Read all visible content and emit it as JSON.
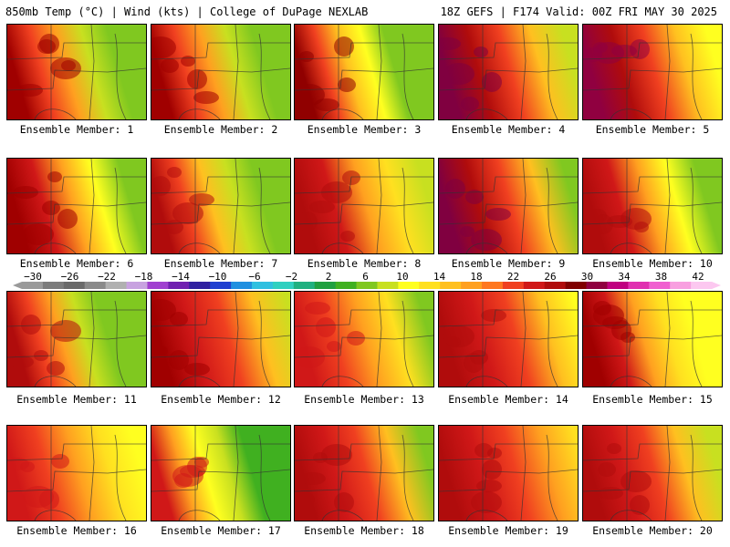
{
  "header": {
    "left_title": "850mb Temp (°C) | Wind (kts) | College of DuPage NEXLAB",
    "right_title": "18Z GEFS | F174 Valid: 00Z FRI MAY 30 2025"
  },
  "colorbar": {
    "labels": [
      "−30",
      "−26",
      "−22",
      "−18",
      "−14",
      "−10",
      "−6",
      "−2",
      "2",
      "6",
      "10",
      "14",
      "18",
      "22",
      "26",
      "30",
      "34",
      "38",
      "42"
    ],
    "colors": [
      "#9a9a9a",
      "#7c7c7c",
      "#6a6a6a",
      "#8a8a8a",
      "#b0b0b0",
      "#c8a2e0",
      "#a040d0",
      "#7020b0",
      "#3020a0",
      "#2040d0",
      "#2090e0",
      "#30c0e0",
      "#30d0c0",
      "#20b080",
      "#20a040",
      "#40b020",
      "#80c820",
      "#c8e020",
      "#ffff20",
      "#ffe020",
      "#ffc020",
      "#ffa020",
      "#ff7820",
      "#f04020",
      "#d01818",
      "#b00c0c",
      "#800000",
      "#900040",
      "#c00080",
      "#e030b0",
      "#f060d0",
      "#f8a0e0",
      "#fcc8f0"
    ]
  },
  "panels": [
    {
      "label": "Ensemble Member: 1",
      "warm_extent": 0.45,
      "gradient": [
        "#a00000",
        "#f04020",
        "#ffa020",
        "#c8e020",
        "#80c820"
      ]
    },
    {
      "label": "Ensemble Member: 2",
      "warm_extent": 0.45,
      "gradient": [
        "#a00000",
        "#f04020",
        "#ffa020",
        "#c8e020",
        "#80c820"
      ]
    },
    {
      "label": "Ensemble Member: 3",
      "warm_extent": 0.4,
      "gradient": [
        "#900000",
        "#f04020",
        "#ffc020",
        "#ffff20",
        "#80c820"
      ]
    },
    {
      "label": "Ensemble Member: 4",
      "warm_extent": 0.55,
      "gradient": [
        "#800040",
        "#b00c0c",
        "#f04020",
        "#ffc020",
        "#c8e020"
      ]
    },
    {
      "label": "Ensemble Member: 5",
      "warm_extent": 0.55,
      "gradient": [
        "#900040",
        "#b00c0c",
        "#f04020",
        "#ffc020",
        "#ffff20"
      ]
    },
    {
      "label": "Ensemble Member: 6",
      "warm_extent": 0.5,
      "gradient": [
        "#a00000",
        "#d01818",
        "#ffa020",
        "#ffff20",
        "#80c820"
      ]
    },
    {
      "label": "Ensemble Member: 7",
      "warm_extent": 0.45,
      "gradient": [
        "#b00c0c",
        "#f04020",
        "#ffc020",
        "#c8e020",
        "#80c820"
      ]
    },
    {
      "label": "Ensemble Member: 8",
      "warm_extent": 0.55,
      "gradient": [
        "#b00c0c",
        "#d01818",
        "#ffa020",
        "#ffe020",
        "#c8e020"
      ]
    },
    {
      "label": "Ensemble Member: 9",
      "warm_extent": 0.55,
      "gradient": [
        "#800040",
        "#b00c0c",
        "#f04020",
        "#ffc020",
        "#80c820"
      ]
    },
    {
      "label": "Ensemble Member: 10",
      "warm_extent": 0.5,
      "gradient": [
        "#b00c0c",
        "#d01818",
        "#ffa020",
        "#ffff20",
        "#80c820"
      ]
    },
    {
      "label": "Ensemble Member: 11",
      "warm_extent": 0.4,
      "gradient": [
        "#b00c0c",
        "#f04020",
        "#ffa020",
        "#c8e020",
        "#80c820"
      ]
    },
    {
      "label": "Ensemble Member: 12",
      "warm_extent": 0.6,
      "gradient": [
        "#a00000",
        "#d01818",
        "#f04020",
        "#ffc020",
        "#c8e020"
      ]
    },
    {
      "label": "Ensemble Member: 13",
      "warm_extent": 0.55,
      "gradient": [
        "#d01818",
        "#f04020",
        "#ffa020",
        "#ffe020",
        "#80c820"
      ]
    },
    {
      "label": "Ensemble Member: 14",
      "warm_extent": 0.6,
      "gradient": [
        "#b00c0c",
        "#d01818",
        "#f04020",
        "#ffc020",
        "#ffff20"
      ]
    },
    {
      "label": "Ensemble Member: 15",
      "warm_extent": 0.45,
      "gradient": [
        "#a00000",
        "#d01818",
        "#ffa020",
        "#ffe020",
        "#ffff20"
      ]
    },
    {
      "label": "Ensemble Member: 16",
      "warm_extent": 0.55,
      "gradient": [
        "#d01818",
        "#f04020",
        "#ffa020",
        "#ffe020",
        "#ffff20"
      ]
    },
    {
      "label": "Ensemble Member: 17",
      "warm_extent": 0.4,
      "gradient": [
        "#d01818",
        "#ffa020",
        "#ffff20",
        "#c8e020",
        "#40b020"
      ]
    },
    {
      "label": "Ensemble Member: 18",
      "warm_extent": 0.55,
      "gradient": [
        "#b00c0c",
        "#d01818",
        "#f04020",
        "#ffc020",
        "#80c820"
      ]
    },
    {
      "label": "Ensemble Member: 19",
      "warm_extent": 0.6,
      "gradient": [
        "#b00c0c",
        "#d01818",
        "#f04020",
        "#ffa020",
        "#ffe020"
      ]
    },
    {
      "label": "Ensemble Member: 20",
      "warm_extent": 0.55,
      "gradient": [
        "#b00c0c",
        "#d01818",
        "#f04020",
        "#ffc020",
        "#c8e020"
      ]
    }
  ]
}
